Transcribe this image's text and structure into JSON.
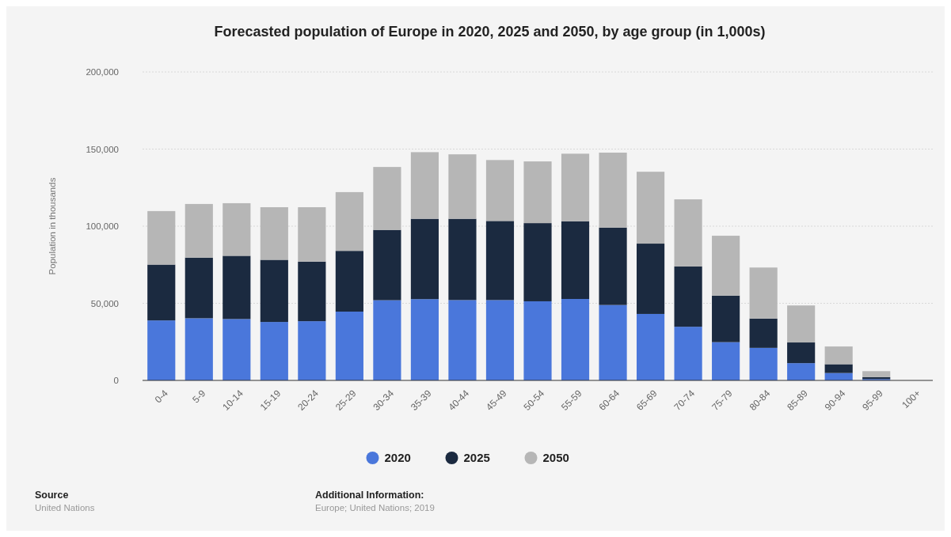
{
  "chart_data": {
    "type": "bar",
    "title": "Forecasted population of Europe in 2020, 2025 and 2050, by age group (in 1,000s)",
    "ylabel": "Population in thousands",
    "stacked": true,
    "categories": [
      "0-4",
      "5-9",
      "10-14",
      "15-19",
      "20-24",
      "25-29",
      "30-34",
      "35-39",
      "40-44",
      "45-49",
      "50-54",
      "55-59",
      "60-64",
      "65-69",
      "70-74",
      "75-79",
      "80-84",
      "85-89",
      "90-94",
      "95-99",
      "100+"
    ],
    "series": [
      {
        "name": "2020",
        "color": "#4a77db",
        "values": [
          38900,
          40300,
          39800,
          37900,
          38400,
          44600,
          52000,
          52700,
          52100,
          52100,
          51300,
          52800,
          48900,
          43100,
          34800,
          24800,
          21100,
          11200,
          4800,
          900,
          0
        ]
      },
      {
        "name": "2025",
        "color": "#1b2a40",
        "values": [
          36200,
          39300,
          41000,
          40300,
          38600,
          39400,
          45600,
          52100,
          52700,
          51300,
          50700,
          50400,
          50200,
          45600,
          39100,
          30200,
          19000,
          13400,
          5700,
          1200,
          0
        ]
      },
      {
        "name": "2050",
        "color": "#b6b6b6",
        "values": [
          34700,
          34800,
          34100,
          34100,
          35300,
          38100,
          40800,
          43200,
          41800,
          39500,
          40000,
          43800,
          48600,
          46600,
          43500,
          38800,
          33100,
          24000,
          11500,
          3900,
          0
        ]
      }
    ],
    "ylim": [
      0,
      200000
    ],
    "yticks": [
      {
        "value": 0,
        "label": "0"
      },
      {
        "value": 50000,
        "label": "50,000"
      },
      {
        "value": 100000,
        "label": "100,000"
      },
      {
        "value": 150000,
        "label": "150,000"
      },
      {
        "value": 200000,
        "label": "200,000"
      }
    ],
    "grid": "y",
    "legend": "bottom",
    "annotations": [
      "Source",
      "United Nations",
      "Additional Information:",
      "Europe; United Nations; 2019"
    ]
  }
}
